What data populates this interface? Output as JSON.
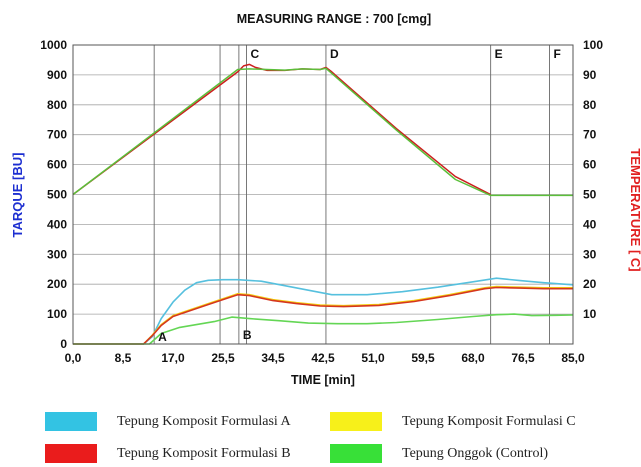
{
  "chart_data": {
    "type": "line",
    "title": "MEASURING RANGE : 700 [cmg]",
    "xlabel": "TIME [min]",
    "ylabel_left": "TARQUE [BU]",
    "ylabel_right": "TEMPERATURE [°C]",
    "ylabel_right_visible": "TEMPERATURE [ C]",
    "xlim": [
      0,
      85
    ],
    "ylim_left": [
      0,
      1000
    ],
    "ylim_right": [
      0,
      100
    ],
    "x_ticks": [
      "0,0",
      "8,5",
      "17,0",
      "25,5",
      "34,5",
      "42,5",
      "51,0",
      "59,5",
      "68,0",
      "76,5",
      "85,0"
    ],
    "y_ticks_left": [
      "0",
      "100",
      "200",
      "300",
      "400",
      "500",
      "600",
      "700",
      "800",
      "900",
      "1000"
    ],
    "y_ticks_right": [
      "10",
      "20",
      "30",
      "40",
      "50",
      "60",
      "70",
      "80",
      "90",
      "100"
    ],
    "grid": true,
    "markers": [
      {
        "label": "A",
        "x": 13.8
      },
      {
        "label": "B",
        "x": 28.2
      },
      {
        "label": "C",
        "x": 29.5
      },
      {
        "label": "D",
        "x": 43.0
      },
      {
        "label": "E",
        "x": 71.0
      },
      {
        "label": "F",
        "x": 81.0
      }
    ],
    "extra_vlines": [
      25.0
    ],
    "temperature": {
      "axis": "left",
      "series": [
        {
          "name": "Tepung Komposit Formulasi B",
          "color": "#cc1f1f",
          "x": [
            0,
            28,
            29,
            30,
            31,
            33,
            36,
            39,
            42,
            43,
            44,
            55,
            65,
            71
          ],
          "y": [
            500,
            910,
            930,
            935,
            925,
            915,
            915,
            920,
            918,
            925,
            910,
            720,
            560,
            500
          ]
        },
        {
          "name": "Tepung Komposit Formulasi A",
          "color": "#5bbf3a",
          "x": [
            0,
            28,
            30,
            33,
            36,
            39,
            42,
            43,
            44,
            55,
            65,
            71,
            85
          ],
          "y": [
            500,
            918,
            920,
            918,
            916,
            920,
            918,
            922,
            905,
            715,
            550,
            497,
            497
          ]
        }
      ]
    },
    "series": [
      {
        "name": "Tepung Komposit Formulasi A",
        "color": "#56c0de",
        "x": [
          0,
          12,
          13.5,
          15,
          17,
          19,
          21,
          23,
          25.5,
          28,
          32,
          36,
          40,
          44,
          50,
          56,
          62,
          68,
          72,
          76,
          80,
          85
        ],
        "y": [
          0,
          0,
          25,
          85,
          140,
          180,
          205,
          213,
          215,
          215,
          210,
          195,
          180,
          165,
          165,
          175,
          190,
          208,
          220,
          212,
          205,
          198
        ]
      },
      {
        "name": "Tepung Komposit Formulasi C",
        "color": "#f2cc10",
        "x": [
          0,
          12,
          13.5,
          15,
          17,
          20,
          23,
          26,
          28,
          30,
          34,
          38,
          42,
          46,
          52,
          58,
          64,
          70,
          72,
          76,
          80,
          85
        ],
        "y": [
          0,
          0,
          30,
          65,
          95,
          115,
          135,
          155,
          168,
          165,
          148,
          138,
          130,
          128,
          132,
          145,
          165,
          188,
          192,
          190,
          188,
          188
        ]
      },
      {
        "name": "Tepung Komposit Formulasi B",
        "color": "#d5361e",
        "x": [
          0,
          12,
          13.5,
          15,
          17,
          20,
          23,
          26,
          28,
          30,
          34,
          38,
          42,
          46,
          52,
          58,
          64,
          70,
          72,
          76,
          80,
          85
        ],
        "y": [
          0,
          0,
          28,
          62,
          92,
          112,
          132,
          152,
          165,
          162,
          145,
          135,
          127,
          125,
          129,
          142,
          162,
          185,
          189,
          187,
          185,
          185
        ]
      },
      {
        "name": "Tepung Onggok (Control)",
        "color": "#64d655",
        "x": [
          0,
          13,
          15,
          18,
          21,
          24,
          27,
          30,
          35,
          40,
          45,
          50,
          55,
          62,
          68,
          72,
          75,
          78,
          82,
          85
        ],
        "y": [
          0,
          0,
          35,
          55,
          65,
          75,
          90,
          85,
          78,
          70,
          68,
          68,
          72,
          82,
          92,
          98,
          100,
          95,
          96,
          97
        ]
      }
    ]
  },
  "legend": {
    "items": [
      {
        "label": "Tepung Komposit Formulasi A",
        "color": "#33c3e3"
      },
      {
        "label": "Tepung Komposit Formulasi C",
        "color": "#f7f01a"
      },
      {
        "label": "Tepung Komposit Formulasi B",
        "color": "#ea1c1c"
      },
      {
        "label": "Tepung Onggok (Control)",
        "color": "#38e038"
      }
    ]
  }
}
